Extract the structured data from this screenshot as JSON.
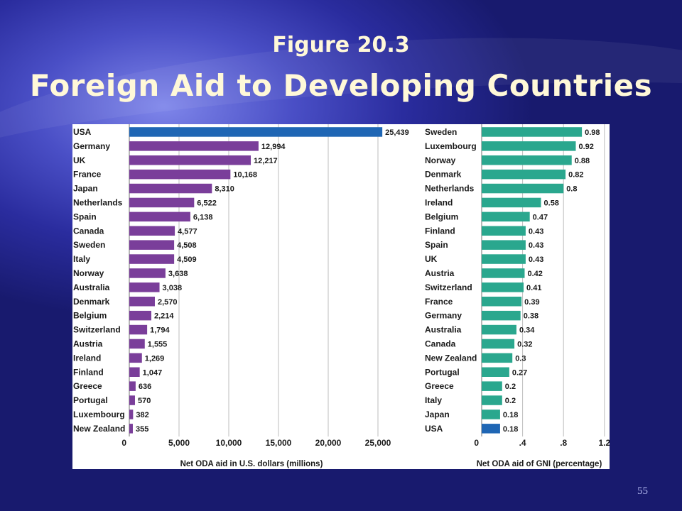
{
  "slide": {
    "figure_label": "Figure 20.3",
    "title": "Foreign Aid to Developing Countries",
    "page_number": "55"
  },
  "chart_data": [
    {
      "type": "bar",
      "orientation": "horizontal",
      "xlabel": "Net ODA aid in U.S. dollars (millions)",
      "xlim": [
        0,
        27500
      ],
      "xticks": [
        0,
        5000,
        10000,
        15000,
        20000,
        25000
      ],
      "xtick_labels": [
        "0",
        "5,000",
        "10,000",
        "15,000",
        "20,000",
        "25,000"
      ],
      "grid": true,
      "bar_color": "#7a3e9a",
      "highlight_color": "#1f66b4",
      "highlight_category": "USA",
      "categories": [
        "USA",
        "Germany",
        "UK",
        "France",
        "Japan",
        "Netherlands",
        "Spain",
        "Canada",
        "Sweden",
        "Italy",
        "Norway",
        "Australia",
        "Denmark",
        "Belgium",
        "Switzerland",
        "Austria",
        "Ireland",
        "Finland",
        "Greece",
        "Portugal",
        "Luxembourg",
        "New Zealand"
      ],
      "values": [
        25439,
        12994,
        12217,
        10168,
        8310,
        6522,
        6138,
        4577,
        4508,
        4509,
        3638,
        3038,
        2570,
        2214,
        1794,
        1555,
        1269,
        1047,
        636,
        570,
        382,
        355
      ],
      "value_labels": [
        "25,439",
        "12,994",
        "12,217",
        "10,168",
        "8,310",
        "6,522",
        "6,138",
        "4,577",
        "4,508",
        "4,509",
        "3,638",
        "3,038",
        "2,570",
        "2,214",
        "1,794",
        "1,555",
        "1,269",
        "1,047",
        "636",
        "570",
        "382",
        "355"
      ]
    },
    {
      "type": "bar",
      "orientation": "horizontal",
      "xlabel": "Net ODA aid of GNI (percentage)",
      "xlim": [
        0,
        1.25
      ],
      "xticks": [
        0,
        0.4,
        0.8,
        1.2
      ],
      "xtick_labels": [
        "0",
        ".4",
        ".8",
        "1.2"
      ],
      "grid": true,
      "bar_color": "#2aa78e",
      "highlight_color": "#1f66b4",
      "highlight_category": "USA",
      "categories": [
        "Sweden",
        "Luxembourg",
        "Norway",
        "Denmark",
        "Netherlands",
        "Ireland",
        "Belgium",
        "Finland",
        "Spain",
        "UK",
        "Austria",
        "Switzerland",
        "France",
        "Germany",
        "Australia",
        "Canada",
        "New Zealand",
        "Portugal",
        "Greece",
        "Italy",
        "Japan",
        "USA"
      ],
      "values": [
        0.98,
        0.92,
        0.88,
        0.82,
        0.8,
        0.58,
        0.47,
        0.43,
        0.43,
        0.43,
        0.42,
        0.41,
        0.39,
        0.38,
        0.34,
        0.32,
        0.3,
        0.27,
        0.2,
        0.2,
        0.18,
        0.18
      ],
      "value_labels": [
        "0.98",
        "0.92",
        "0.88",
        "0.82",
        "0.8",
        "0.58",
        "0.47",
        "0.43",
        "0.43",
        "0.43",
        "0.42",
        "0.41",
        "0.39",
        "0.38",
        "0.34",
        "0.32",
        "0.3",
        "0.27",
        "0.2",
        "0.2",
        "0.18",
        "0.18"
      ]
    }
  ]
}
